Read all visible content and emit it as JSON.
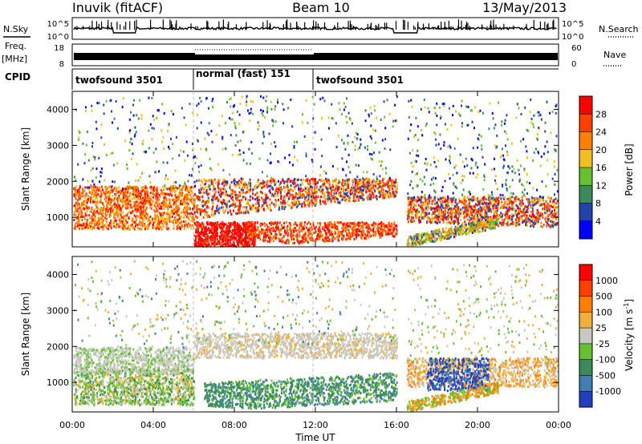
{
  "header": {
    "title_left": "Inuvik (fitACF)",
    "title_center": "Beam 10",
    "title_right": "13/May/2013"
  },
  "chart_data": [
    {
      "type": "line",
      "name": "sky-noise-panel",
      "left_label": "N.Sky",
      "left_ticks": [
        "10^5",
        "10^0"
      ],
      "right_label": "N.Search",
      "right_ticks": [
        "10^5",
        "10^0"
      ],
      "series": [
        {
          "name": "N.Sky",
          "style": "solid"
        },
        {
          "name": "N.Search",
          "style": "dotted"
        }
      ]
    },
    {
      "type": "line",
      "name": "frequency-panel",
      "left_label_line1": "Freq.",
      "left_label_line2": "[MHz]",
      "left_ticks": [
        "18",
        "8"
      ],
      "right_label": "Nave",
      "right_ticks": [
        "60",
        "0"
      ]
    },
    {
      "type": "table",
      "name": "cpid-panel",
      "label": "CPID",
      "segments": [
        {
          "start_h": 0,
          "end_h": 6,
          "text": "twofsound 3501"
        },
        {
          "start_h": 6,
          "end_h": 12,
          "text": "normal (fast) 151"
        },
        {
          "start_h": 12,
          "end_h": 24,
          "text": "twofsound 3501"
        }
      ]
    },
    {
      "type": "heatmap",
      "name": "power-panel",
      "ylabel": "Slant Range [km]",
      "yticks": [
        1000,
        2000,
        3000,
        4000
      ],
      "ylim": [
        180,
        4500
      ],
      "colorbar_label": "Power [dB]",
      "colorbar_ticks": [
        "28",
        "24",
        "20",
        "16",
        "12",
        "8",
        "4"
      ],
      "colors": [
        "#0000ff",
        "#2244aa",
        "#3a8a5a",
        "#66c030",
        "#f0c020",
        "#ff8000",
        "#ff4000",
        "#ff0000"
      ]
    },
    {
      "type": "heatmap",
      "name": "velocity-panel",
      "ylabel": "Slant Range [km]",
      "yticks": [
        1000,
        2000,
        3000,
        4000
      ],
      "ylim": [
        180,
        4500
      ],
      "colorbar_label": "Velocity [m s",
      "colorbar_label_sup": "-1",
      "colorbar_label_end": "]",
      "colorbar_ticks": [
        "1000",
        "500",
        "100",
        "25",
        "-25",
        "-100",
        "-500",
        "-1000"
      ],
      "colors": [
        "#2040c0",
        "#4080b0",
        "#3a8a5a",
        "#66c030",
        "#c8c8c0",
        "#f0b040",
        "#ff8000",
        "#ff4000",
        "#ff0000"
      ]
    }
  ],
  "xaxis": {
    "label": "Time UT",
    "ticks": [
      "00:00",
      "04:00",
      "08:00",
      "12:00",
      "16:00",
      "20:00",
      "00:00"
    ]
  }
}
